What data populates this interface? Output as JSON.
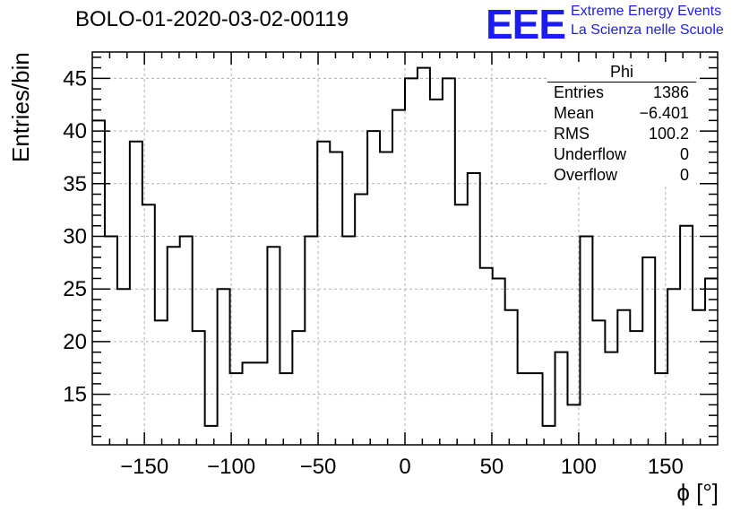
{
  "title": "BOLO-01-2020-03-02-00119",
  "logo": {
    "mark": "EEE",
    "line1": "Extreme Energy Events",
    "line2": "La Scienza nelle Scuole"
  },
  "chart_data": {
    "type": "histogram",
    "title": "BOLO-01-2020-03-02-00119",
    "xlabel": "ϕ [°]",
    "ylabel": "Entries/bin",
    "xlim": [
      -180,
      180
    ],
    "ylim": [
      10.2,
      47.5
    ],
    "bin_width": 7.2,
    "bin_edges_start": -180,
    "xticks": [
      -150,
      -100,
      -50,
      0,
      50,
      100,
      150
    ],
    "yticks": [
      15,
      20,
      25,
      30,
      35,
      40,
      45
    ],
    "grid": true,
    "values": [
      41,
      30,
      25,
      39,
      33,
      22,
      29,
      30,
      21,
      12,
      25,
      17,
      18,
      18,
      29,
      17,
      21,
      30,
      39,
      38,
      30,
      34,
      40,
      38,
      42,
      45,
      46,
      43,
      45,
      33,
      36,
      27,
      26,
      23,
      17,
      17,
      12,
      19,
      14,
      30,
      22,
      19,
      23,
      21,
      28,
      17,
      25,
      31,
      23,
      26
    ]
  },
  "stats": {
    "name": "Phi",
    "rows": [
      {
        "label": "Entries",
        "value": "1386"
      },
      {
        "label": "Mean",
        "value": "−6.401"
      },
      {
        "label": "RMS",
        "value": "100.2"
      },
      {
        "label": "Underflow",
        "value": "0"
      },
      {
        "label": "Overflow",
        "value": "0"
      }
    ]
  }
}
